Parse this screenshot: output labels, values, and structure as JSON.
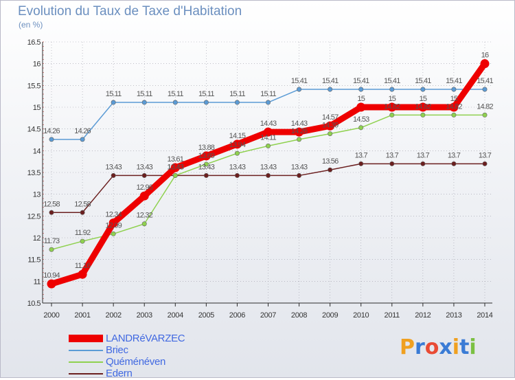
{
  "title": "Evolution du Taux de Taxe d'Habitation",
  "unit_label": "(en %)",
  "logo": {
    "text": "Proxiti",
    "letters": [
      "P",
      "r",
      "o",
      "x",
      "i",
      "t",
      "i"
    ],
    "colors": [
      "#f0a020",
      "#3a7bd5",
      "#e94b35",
      "#3a7bd5",
      "#f0a020",
      "#3a7bd5",
      "#7bc043"
    ]
  },
  "colors": {
    "grid": "#9a9aa6",
    "axis": "#2a2a2a",
    "tick_text": "#333333",
    "label_text": "#555555"
  },
  "chart_data": {
    "type": "line",
    "title": "Evolution du Taux de Taxe d'Habitation",
    "ylabel": "(en %)",
    "xlabel": "",
    "ylim": [
      10.5,
      16.5
    ],
    "yticks": [
      "10.5",
      "11",
      "11.5",
      "12",
      "12.5",
      "13",
      "13.5",
      "14",
      "14.5",
      "15",
      "15.5",
      "16",
      "16.5"
    ],
    "x": [
      "2000",
      "2001",
      "2002",
      "2003",
      "2004",
      "2005",
      "2006",
      "2007",
      "2008",
      "2009",
      "2010",
      "2011",
      "2012",
      "2013",
      "2014"
    ],
    "grid": true,
    "series": [
      {
        "name": "LANDRéVARZEC",
        "color": "#ee0000",
        "highlight": true,
        "values": [
          10.94,
          11.16,
          12.34,
          12.96,
          13.61,
          13.88,
          14.15,
          14.43,
          14.43,
          14.57,
          15,
          15,
          15,
          15,
          16
        ],
        "labels": [
          "10.94",
          "11.16",
          "12.34",
          "12.96",
          "13.61",
          "13.88",
          "14.15",
          "14.43",
          "14.43",
          "14.57",
          "15",
          "15",
          "15",
          "15",
          "16"
        ]
      },
      {
        "name": "Briec",
        "color": "#5b9bd5",
        "highlight": false,
        "values": [
          14.26,
          14.26,
          15.11,
          15.11,
          15.11,
          15.11,
          15.11,
          15.11,
          15.41,
          15.41,
          15.41,
          15.41,
          15.41,
          15.41,
          15.41
        ],
        "labels": [
          "14.26",
          "14.26",
          "15.11",
          "15.11",
          "15.11",
          "15.11",
          "15.11",
          "15.11",
          "15.41",
          "15.41",
          "15.41",
          "15.41",
          "15.41",
          "15.41",
          "15.41"
        ]
      },
      {
        "name": "Quéménéven",
        "color": "#8fd14f",
        "highlight": false,
        "values": [
          11.73,
          11.92,
          12.09,
          12.32,
          13.43,
          13.69,
          13.94,
          14.11,
          14.26,
          14.39,
          14.53,
          14.82,
          14.82,
          14.82,
          14.82
        ],
        "labels": [
          "11.73",
          "11.92",
          "12.09",
          "12.32",
          "13.43",
          "13.69",
          "13.94",
          "14.11",
          "14.26",
          "14.39",
          "14.53",
          "14.82",
          "14.82",
          "14.82",
          "14.82"
        ]
      },
      {
        "name": "Edern",
        "color": "#6b1f1f",
        "highlight": false,
        "values": [
          12.58,
          12.58,
          13.43,
          13.43,
          13.43,
          13.43,
          13.43,
          13.43,
          13.43,
          13.56,
          13.7,
          13.7,
          13.7,
          13.7,
          13.7
        ],
        "labels": [
          "12.58",
          "12.58",
          "13.43",
          "13.43",
          "13.43",
          "13.43",
          "13.43",
          "13.43",
          "13.43",
          "13.56",
          "13.7",
          "13.7",
          "13.7",
          "13.7",
          "13.7"
        ]
      }
    ],
    "legend_position": "bottom-left"
  }
}
